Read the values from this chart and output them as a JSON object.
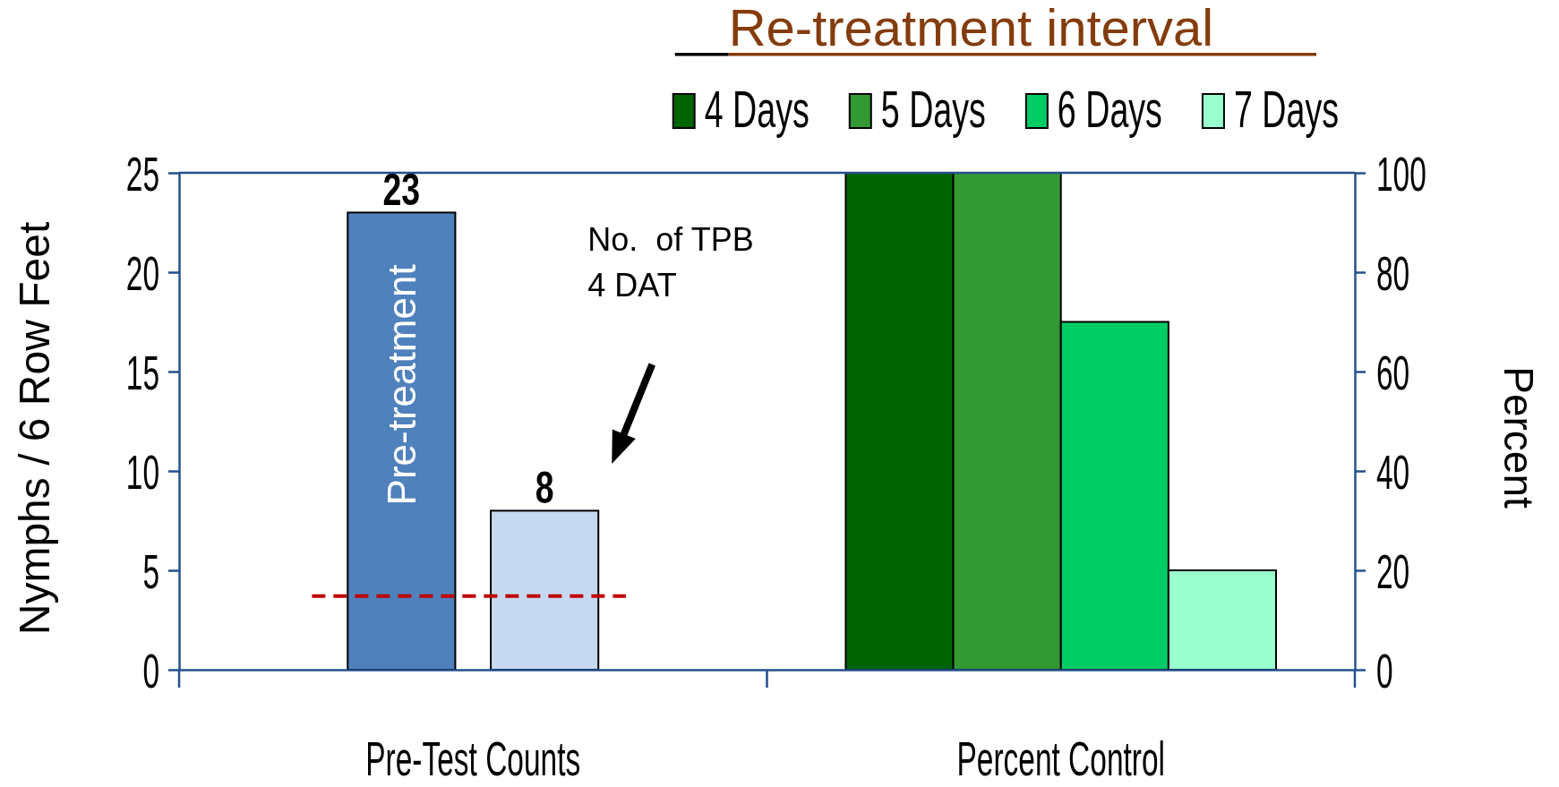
{
  "chart_data": {
    "type": "bar",
    "categories": [
      "Pre-Test Counts",
      "Percent Control"
    ],
    "ylabel": "Nymphs / 6 Row Feet",
    "y2label": "Percent",
    "legend_title": "Re-treatment interval",
    "series": [
      {
        "name": "Pre-treatment",
        "color": "#4f81bd",
        "values": [
          23,
          null
        ],
        "value_labels": [
          "23",
          null
        ]
      },
      {
        "color": "#c6d9f1",
        "values": [
          8,
          null
        ],
        "value_labels": [
          "8",
          null
        ]
      },
      {
        "name": "4 Days",
        "color": "#006400",
        "values": [
          null,
          100
        ],
        "axis": "y2"
      },
      {
        "name": "5 Days",
        "color": "#339933",
        "values": [
          null,
          100
        ],
        "axis": "y2"
      },
      {
        "name": "6 Days",
        "color": "#00cc66",
        "values": [
          null,
          70
        ],
        "axis": "y2"
      },
      {
        "name": "7 Days",
        "color": "#99ffcc",
        "values": [
          null,
          20
        ],
        "axis": "y2"
      }
    ],
    "ylim": [
      0,
      25
    ],
    "yticks": [
      0,
      5,
      10,
      15,
      20,
      25
    ],
    "y2lim": [
      0,
      100
    ],
    "y2ticks": [
      0,
      20,
      40,
      60,
      80,
      100
    ],
    "ref_lines": [
      {
        "axis": "y",
        "value": 3.7,
        "color": "#c00000",
        "line_style": "dashed"
      }
    ],
    "annotations": [
      "No.  of TPB 4 DAT"
    ],
    "legend": "top right"
  }
}
